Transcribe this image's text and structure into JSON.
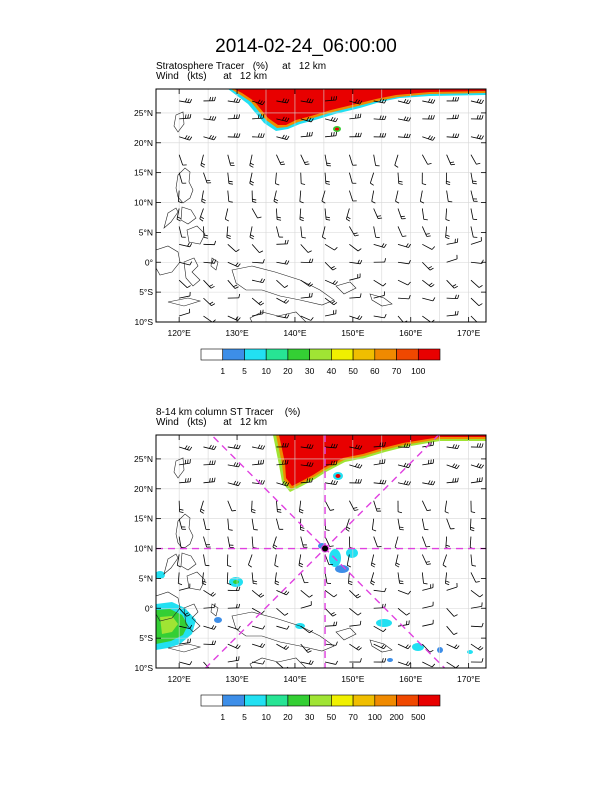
{
  "page": {
    "title": "2014-02-24_06:00:00"
  },
  "chart_data": [
    {
      "type": "heatmap",
      "title_lines": [
        "Stratosphere Tracer   (%)     at   12 km",
        "Wind   (kts)      at   12 km"
      ],
      "xlim": [
        116,
        173
      ],
      "ylim": [
        -10,
        29
      ],
      "x_ticks": [
        120,
        130,
        140,
        150,
        160,
        170
      ],
      "x_tick_labels": [
        "120°E",
        "130°E",
        "140°E",
        "150°E",
        "160°E",
        "170°E"
      ],
      "y_ticks": [
        -10,
        -5,
        0,
        5,
        10,
        15,
        20,
        25
      ],
      "y_tick_labels": [
        "10°S",
        "5°S",
        "0°",
        "5°N",
        "10°N",
        "15°N",
        "20°N",
        "25°N"
      ],
      "gridlines": true,
      "colorbar": {
        "levels": [
          "1",
          "5",
          "10",
          "20",
          "30",
          "40",
          "50",
          "60",
          "70",
          "100"
        ],
        "colors": [
          "#ffffff",
          "#3d8ee8",
          "#22e0f2",
          "#27e494",
          "#34cf34",
          "#a0e434",
          "#f0f000",
          "#f0be00",
          "#f08a00",
          "#f04800",
          "#e80000"
        ]
      },
      "tracer_region": {
        "description": "high stratospheric tracer along northern boundary",
        "lon_range": [
          126,
          173
        ],
        "lat_range": [
          22,
          29
        ]
      },
      "overlay": null
    },
    {
      "type": "heatmap",
      "title_lines": [
        "8-14 km column ST Tracer    (%)",
        "Wind   (kts)      at   12 km"
      ],
      "xlim": [
        116,
        173
      ],
      "ylim": [
        -10,
        29
      ],
      "x_ticks": [
        120,
        130,
        140,
        150,
        160,
        170
      ],
      "x_tick_labels": [
        "120°E",
        "130°E",
        "140°E",
        "150°E",
        "160°E",
        "170°E"
      ],
      "y_ticks": [
        -10,
        -5,
        0,
        5,
        10,
        15,
        20,
        25
      ],
      "y_tick_labels": [
        "10°S",
        "5°S",
        "0°",
        "5°N",
        "10°N",
        "15°N",
        "20°N",
        "25°N"
      ],
      "gridlines": true,
      "colorbar": {
        "levels": [
          "1",
          "5",
          "10",
          "20",
          "30",
          "50",
          "70",
          "100",
          "200",
          "500"
        ],
        "colors": [
          "#ffffff",
          "#3d8ee8",
          "#22e0f2",
          "#27e494",
          "#34cf34",
          "#a0e434",
          "#f0f000",
          "#f0be00",
          "#f08a00",
          "#f04800",
          "#e80000"
        ]
      },
      "tracer_region": {
        "description": "column tracer along northern boundary",
        "lon_range": [
          137,
          173
        ],
        "lat_range": [
          20,
          29
        ]
      },
      "overlay": {
        "center_lon": 145.2,
        "center_lat": 10,
        "line_color": "#e040e0",
        "style": "dashed cross-section lines through storm center"
      }
    }
  ]
}
